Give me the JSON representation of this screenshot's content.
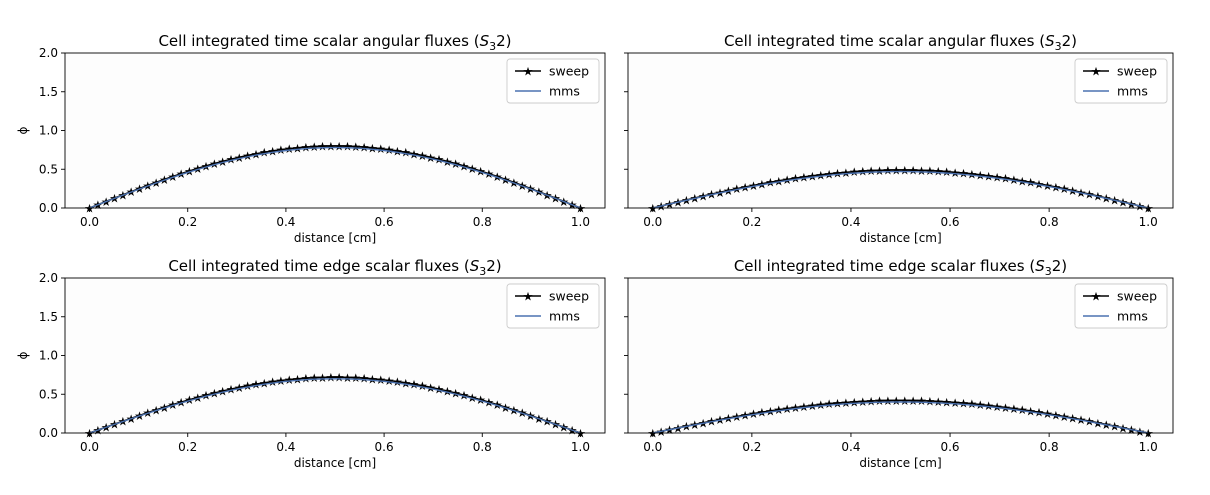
{
  "figure": {
    "panels": [
      {
        "title_main": "Cell integrated time scalar angular fluxes (",
        "title_sym": "S",
        "title_sub": "3",
        "title_end": "2)",
        "xlabel": "distance [cm]",
        "ylabel": "ϕ"
      },
      {
        "title_main": "Cell integrated time scalar angular fluxes (",
        "title_sym": "S",
        "title_sub": "3",
        "title_end": "2)",
        "xlabel": "distance [cm]",
        "ylabel": ""
      },
      {
        "title_main": "Cell integrated time edge scalar fluxes (",
        "title_sym": "S",
        "title_sub": "3",
        "title_end": "2)",
        "xlabel": "distance [cm]",
        "ylabel": "ϕ"
      },
      {
        "title_main": "Cell integrated time edge scalar fluxes (",
        "title_sym": "S",
        "title_sub": "3",
        "title_end": "2)",
        "xlabel": "distance [cm]",
        "ylabel": ""
      }
    ],
    "legend_entries": [
      "sweep",
      "mms"
    ],
    "x_tick_labels": [
      "0.0",
      "0.2",
      "0.4",
      "0.6",
      "0.8",
      "1.0"
    ],
    "y_tick_labels": [
      "0.0",
      "0.5",
      "1.0",
      "1.5",
      "2.0"
    ]
  },
  "chart_data": [
    {
      "type": "line",
      "title": "Cell integrated time scalar angular fluxes (S_3 2)",
      "xlabel": "distance [cm]",
      "ylabel": "ϕ",
      "xlim": [
        -0.05,
        1.05
      ],
      "ylim": [
        0,
        2
      ],
      "x_ticks": [
        0,
        0.2,
        0.4,
        0.6,
        0.8,
        1.0
      ],
      "y_ticks": [
        0,
        0.5,
        1.0,
        1.5,
        2.0
      ],
      "legend": "top-right",
      "grid": false,
      "x_start": 0.0,
      "x_end": 1.0,
      "n_points": 60,
      "series": [
        {
          "name": "sweep",
          "shape": "sin(pi*x)",
          "peak": 0.8,
          "color": "#000000",
          "marker": "star"
        },
        {
          "name": "mms",
          "shape": "sin(pi*x)",
          "peak": 0.78,
          "color": "#4c72b0",
          "marker": "none"
        }
      ]
    },
    {
      "type": "line",
      "title": "Cell integrated time scalar angular fluxes (S_3 2)",
      "xlabel": "distance [cm]",
      "ylabel": "",
      "xlim": [
        -0.05,
        1.05
      ],
      "ylim": [
        0,
        2
      ],
      "x_ticks": [
        0,
        0.2,
        0.4,
        0.6,
        0.8,
        1.0
      ],
      "y_ticks": [
        0,
        0.5,
        1.0,
        1.5,
        2.0
      ],
      "legend": "top-right",
      "grid": false,
      "x_start": 0.0,
      "x_end": 1.0,
      "n_points": 60,
      "series": [
        {
          "name": "sweep",
          "shape": "sin(pi*x)",
          "peak": 0.49,
          "color": "#000000",
          "marker": "star"
        },
        {
          "name": "mms",
          "shape": "sin(pi*x)",
          "peak": 0.47,
          "color": "#4c72b0",
          "marker": "none"
        }
      ]
    },
    {
      "type": "line",
      "title": "Cell integrated time edge scalar fluxes (S_3 2)",
      "xlabel": "distance [cm]",
      "ylabel": "ϕ",
      "xlim": [
        -0.05,
        1.05
      ],
      "ylim": [
        0,
        2
      ],
      "x_ticks": [
        0,
        0.2,
        0.4,
        0.6,
        0.8,
        1.0
      ],
      "y_ticks": [
        0,
        0.5,
        1.0,
        1.5,
        2.0
      ],
      "legend": "top-right",
      "grid": false,
      "x_start": 0.0,
      "x_end": 1.0,
      "n_points": 60,
      "series": [
        {
          "name": "sweep",
          "shape": "sin(pi*x)",
          "peak": 0.72,
          "color": "#000000",
          "marker": "star"
        },
        {
          "name": "mms",
          "shape": "sin(pi*x)",
          "peak": 0.7,
          "color": "#4c72b0",
          "marker": "none"
        }
      ]
    },
    {
      "type": "line",
      "title": "Cell integrated time edge scalar fluxes (S_3 2)",
      "xlabel": "distance [cm]",
      "ylabel": "",
      "xlim": [
        -0.05,
        1.05
      ],
      "ylim": [
        0,
        2
      ],
      "x_ticks": [
        0,
        0.2,
        0.4,
        0.6,
        0.8,
        1.0
      ],
      "y_ticks": [
        0,
        0.5,
        1.0,
        1.5,
        2.0
      ],
      "legend": "top-right",
      "grid": false,
      "x_start": 0.0,
      "x_end": 1.0,
      "n_points": 60,
      "series": [
        {
          "name": "sweep",
          "shape": "sin(pi*x)",
          "peak": 0.42,
          "color": "#000000",
          "marker": "star"
        },
        {
          "name": "mms",
          "shape": "sin(pi*x)",
          "peak": 0.4,
          "color": "#4c72b0",
          "marker": "none"
        }
      ]
    }
  ]
}
